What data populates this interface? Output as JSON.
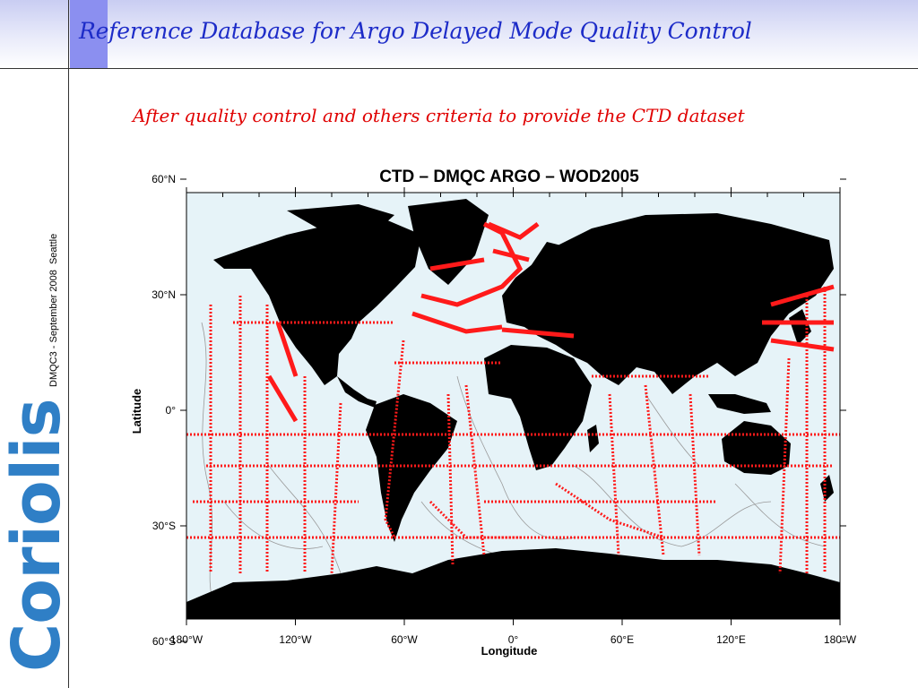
{
  "slide": {
    "title": "Reference Database for Argo Delayed Mode Quality Control",
    "subtitle": "After quality control and others criteria to provide the CTD dataset",
    "side_caption": "DMQC3 - September 2008  Seattle",
    "logo_text": "Coriolis"
  },
  "map": {
    "title": "CTD – DMQC ARGO – WOD2005",
    "xlabel": "Longitude",
    "ylabel": "Latitude",
    "x_ticks": [
      {
        "value": -180,
        "label": "180°W"
      },
      {
        "value": -120,
        "label": "120°W"
      },
      {
        "value": -60,
        "label": "60°W"
      },
      {
        "value": 0,
        "label": "0°"
      },
      {
        "value": 60,
        "label": "60°E"
      },
      {
        "value": 120,
        "label": "120°E"
      },
      {
        "value": 180,
        "label": "180°W"
      }
    ],
    "y_ticks": [
      {
        "value": 60,
        "label": "60°N"
      },
      {
        "value": 30,
        "label": "30°N"
      },
      {
        "value": 0,
        "label": "0°"
      },
      {
        "value": -30,
        "label": "30°S"
      },
      {
        "value": -60,
        "label": "60°S"
      }
    ],
    "xlim": [
      -180,
      180
    ],
    "ylim": [
      -82,
      90
    ],
    "colors": {
      "ocean": "#e6f3f8",
      "land": "#000000",
      "stations": "#ff1a1a",
      "bathymetry": "#9a9a9a"
    }
  }
}
